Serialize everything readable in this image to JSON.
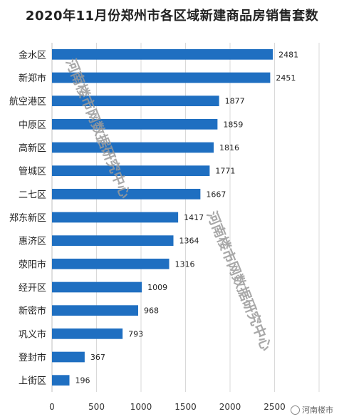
{
  "chart_data": {
    "type": "bar",
    "orientation": "horizontal",
    "title": "2020年11月份郑州市各区域新建商品房销售套数",
    "categories": [
      "金水区",
      "新郑市",
      "航空港区",
      "中原区",
      "高新区",
      "管城区",
      "二七区",
      "郑东新区",
      "惠济区",
      "荥阳市",
      "经开区",
      "新密市",
      "巩义市",
      "登封市",
      "上街区"
    ],
    "values": [
      2481,
      2451,
      1877,
      1859,
      1816,
      1771,
      1667,
      1417,
      1364,
      1316,
      1009,
      968,
      793,
      367,
      196
    ],
    "xlim": [
      0,
      3000
    ],
    "x_ticks": [
      "0",
      "500",
      "1000",
      "1500",
      "2000",
      "2500",
      "3000"
    ],
    "grid": "vertical",
    "bar_color": "#1f6fc1"
  },
  "watermark": {
    "text1": "河南楼市网数据研究中心",
    "text2": "河南楼市网数据研究中心"
  },
  "footer": {
    "badge": "河南楼市"
  }
}
